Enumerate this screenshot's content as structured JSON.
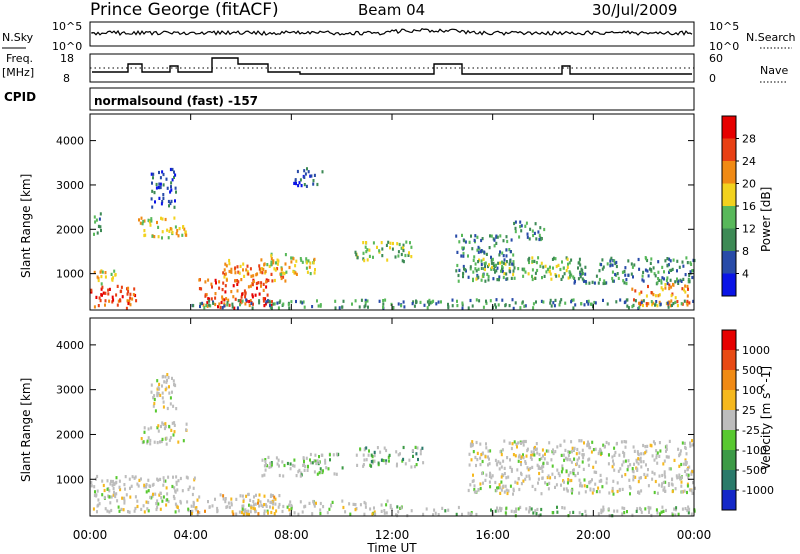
{
  "header": {
    "station": "Prince George (fitACF)",
    "beam": "Beam 04",
    "date": "30/Jul/2009"
  },
  "panels": {
    "nsky_label": "N.Sky",
    "nsearch_label": "N.Search",
    "noise_ticks": [
      "10^5",
      "10^0"
    ],
    "freq_label": "Freq.",
    "freq_unit": "[MHz]",
    "freq_ticks": [
      "18",
      "8"
    ],
    "nave_label": "Nave",
    "nave_ticks": [
      "60",
      "0"
    ],
    "cpid_label": "CPID",
    "program": "normalsound (fast) -157"
  },
  "chart_data": [
    {
      "type": "heatmap",
      "name": "Power",
      "ylabel": "Slant Range [km]",
      "xlabel": "Time UT",
      "x_range_hours": [
        0,
        24
      ],
      "ylim": [
        180,
        4600
      ],
      "yticks": [
        "1000",
        "2000",
        "3000",
        "4000"
      ],
      "xticks": [
        "00:00",
        "04:00",
        "08:00",
        "12:00",
        "16:00",
        "20:00",
        "00:00"
      ],
      "colorbar": {
        "label": "Power [dB]",
        "ticks": [
          "4",
          "8",
          "12",
          "16",
          "20",
          "24",
          "28"
        ],
        "colors": [
          "#0a14e6",
          "#284ba8",
          "#3d8a55",
          "#58b85a",
          "#f2d21e",
          "#f08a14",
          "#e84014",
          "#e60000"
        ]
      },
      "regions": [
        {
          "t": [
            0.0,
            1.8
          ],
          "r": [
            250,
            800
          ],
          "level": 6
        },
        {
          "t": [
            0.0,
            1.2
          ],
          "r": [
            800,
            1100
          ],
          "level": 4
        },
        {
          "t": [
            0.0,
            0.4
          ],
          "r": [
            1900,
            2400
          ],
          "level": 2
        },
        {
          "t": [
            1.9,
            3.8
          ],
          "r": [
            1800,
            2300
          ],
          "level": 4
        },
        {
          "t": [
            2.4,
            3.4
          ],
          "r": [
            2500,
            3400
          ],
          "level": 1
        },
        {
          "t": [
            4.3,
            7.2
          ],
          "r": [
            250,
            900
          ],
          "level": 6
        },
        {
          "t": [
            5.2,
            7.8
          ],
          "r": [
            850,
            1350
          ],
          "level": 5
        },
        {
          "t": [
            7.0,
            9.0
          ],
          "r": [
            1000,
            1500
          ],
          "level": 4
        },
        {
          "t": [
            10.5,
            12.8
          ],
          "r": [
            1300,
            1750
          ],
          "level": 3
        },
        {
          "t": [
            8.0,
            9.2
          ],
          "r": [
            3000,
            3400
          ],
          "level": 1
        },
        {
          "t": [
            14.5,
            16.8
          ],
          "r": [
            850,
            1900
          ],
          "level": 2
        },
        {
          "t": [
            15.2,
            19.5
          ],
          "r": [
            900,
            1400
          ],
          "level": 3
        },
        {
          "t": [
            16.8,
            18.2
          ],
          "r": [
            1800,
            2200
          ],
          "level": 2
        },
        {
          "t": [
            19.0,
            24.0
          ],
          "r": [
            800,
            1400
          ],
          "level": 2
        },
        {
          "t": [
            21.5,
            23.8
          ],
          "r": [
            300,
            800
          ],
          "level": 5
        },
        {
          "t": [
            4.0,
            24.0
          ],
          "r": [
            250,
            450
          ],
          "level": 2
        }
      ]
    },
    {
      "type": "heatmap",
      "name": "Velocity",
      "ylabel": "Slant Range [km]",
      "xlabel": "Time UT",
      "x_range_hours": [
        0,
        24
      ],
      "ylim": [
        180,
        4600
      ],
      "yticks": [
        "1000",
        "2000",
        "3000",
        "4000"
      ],
      "xticks": [
        "00:00",
        "04:00",
        "08:00",
        "12:00",
        "16:00",
        "20:00",
        "00:00"
      ],
      "colorbar": {
        "label": "Velocity [m s^-1]",
        "ticks": [
          "1000",
          "500",
          "100",
          "25",
          "-25",
          "-100",
          "-500",
          "-1000"
        ],
        "colors": [
          "#1428c8",
          "#2a7a6a",
          "#3c9a46",
          "#58c830",
          "#bdbdbd",
          "#f5b81e",
          "#f08a14",
          "#e84a14",
          "#e60000"
        ]
      },
      "regions": [
        {
          "t": [
            0.0,
            4.2
          ],
          "r": [
            300,
            1100
          ],
          "level": 4
        },
        {
          "t": [
            2.0,
            3.8
          ],
          "r": [
            1800,
            2300
          ],
          "level": 4
        },
        {
          "t": [
            2.4,
            3.4
          ],
          "r": [
            2500,
            3400
          ],
          "level": 4
        },
        {
          "t": [
            4.0,
            7.5
          ],
          "r": [
            250,
            700
          ],
          "level": 5
        },
        {
          "t": [
            6.8,
            10.0
          ],
          "r": [
            1100,
            1600
          ],
          "level": 3
        },
        {
          "t": [
            10.5,
            13.2
          ],
          "r": [
            1300,
            1750
          ],
          "level": 2
        },
        {
          "t": [
            15.0,
            24.0
          ],
          "r": [
            700,
            1900
          ],
          "level": 4
        },
        {
          "t": [
            6.0,
            12.0
          ],
          "r": [
            250,
            550
          ],
          "level": 4
        },
        {
          "t": [
            12.0,
            24.0
          ],
          "r": [
            220,
            420
          ],
          "level": 3
        }
      ]
    }
  ]
}
